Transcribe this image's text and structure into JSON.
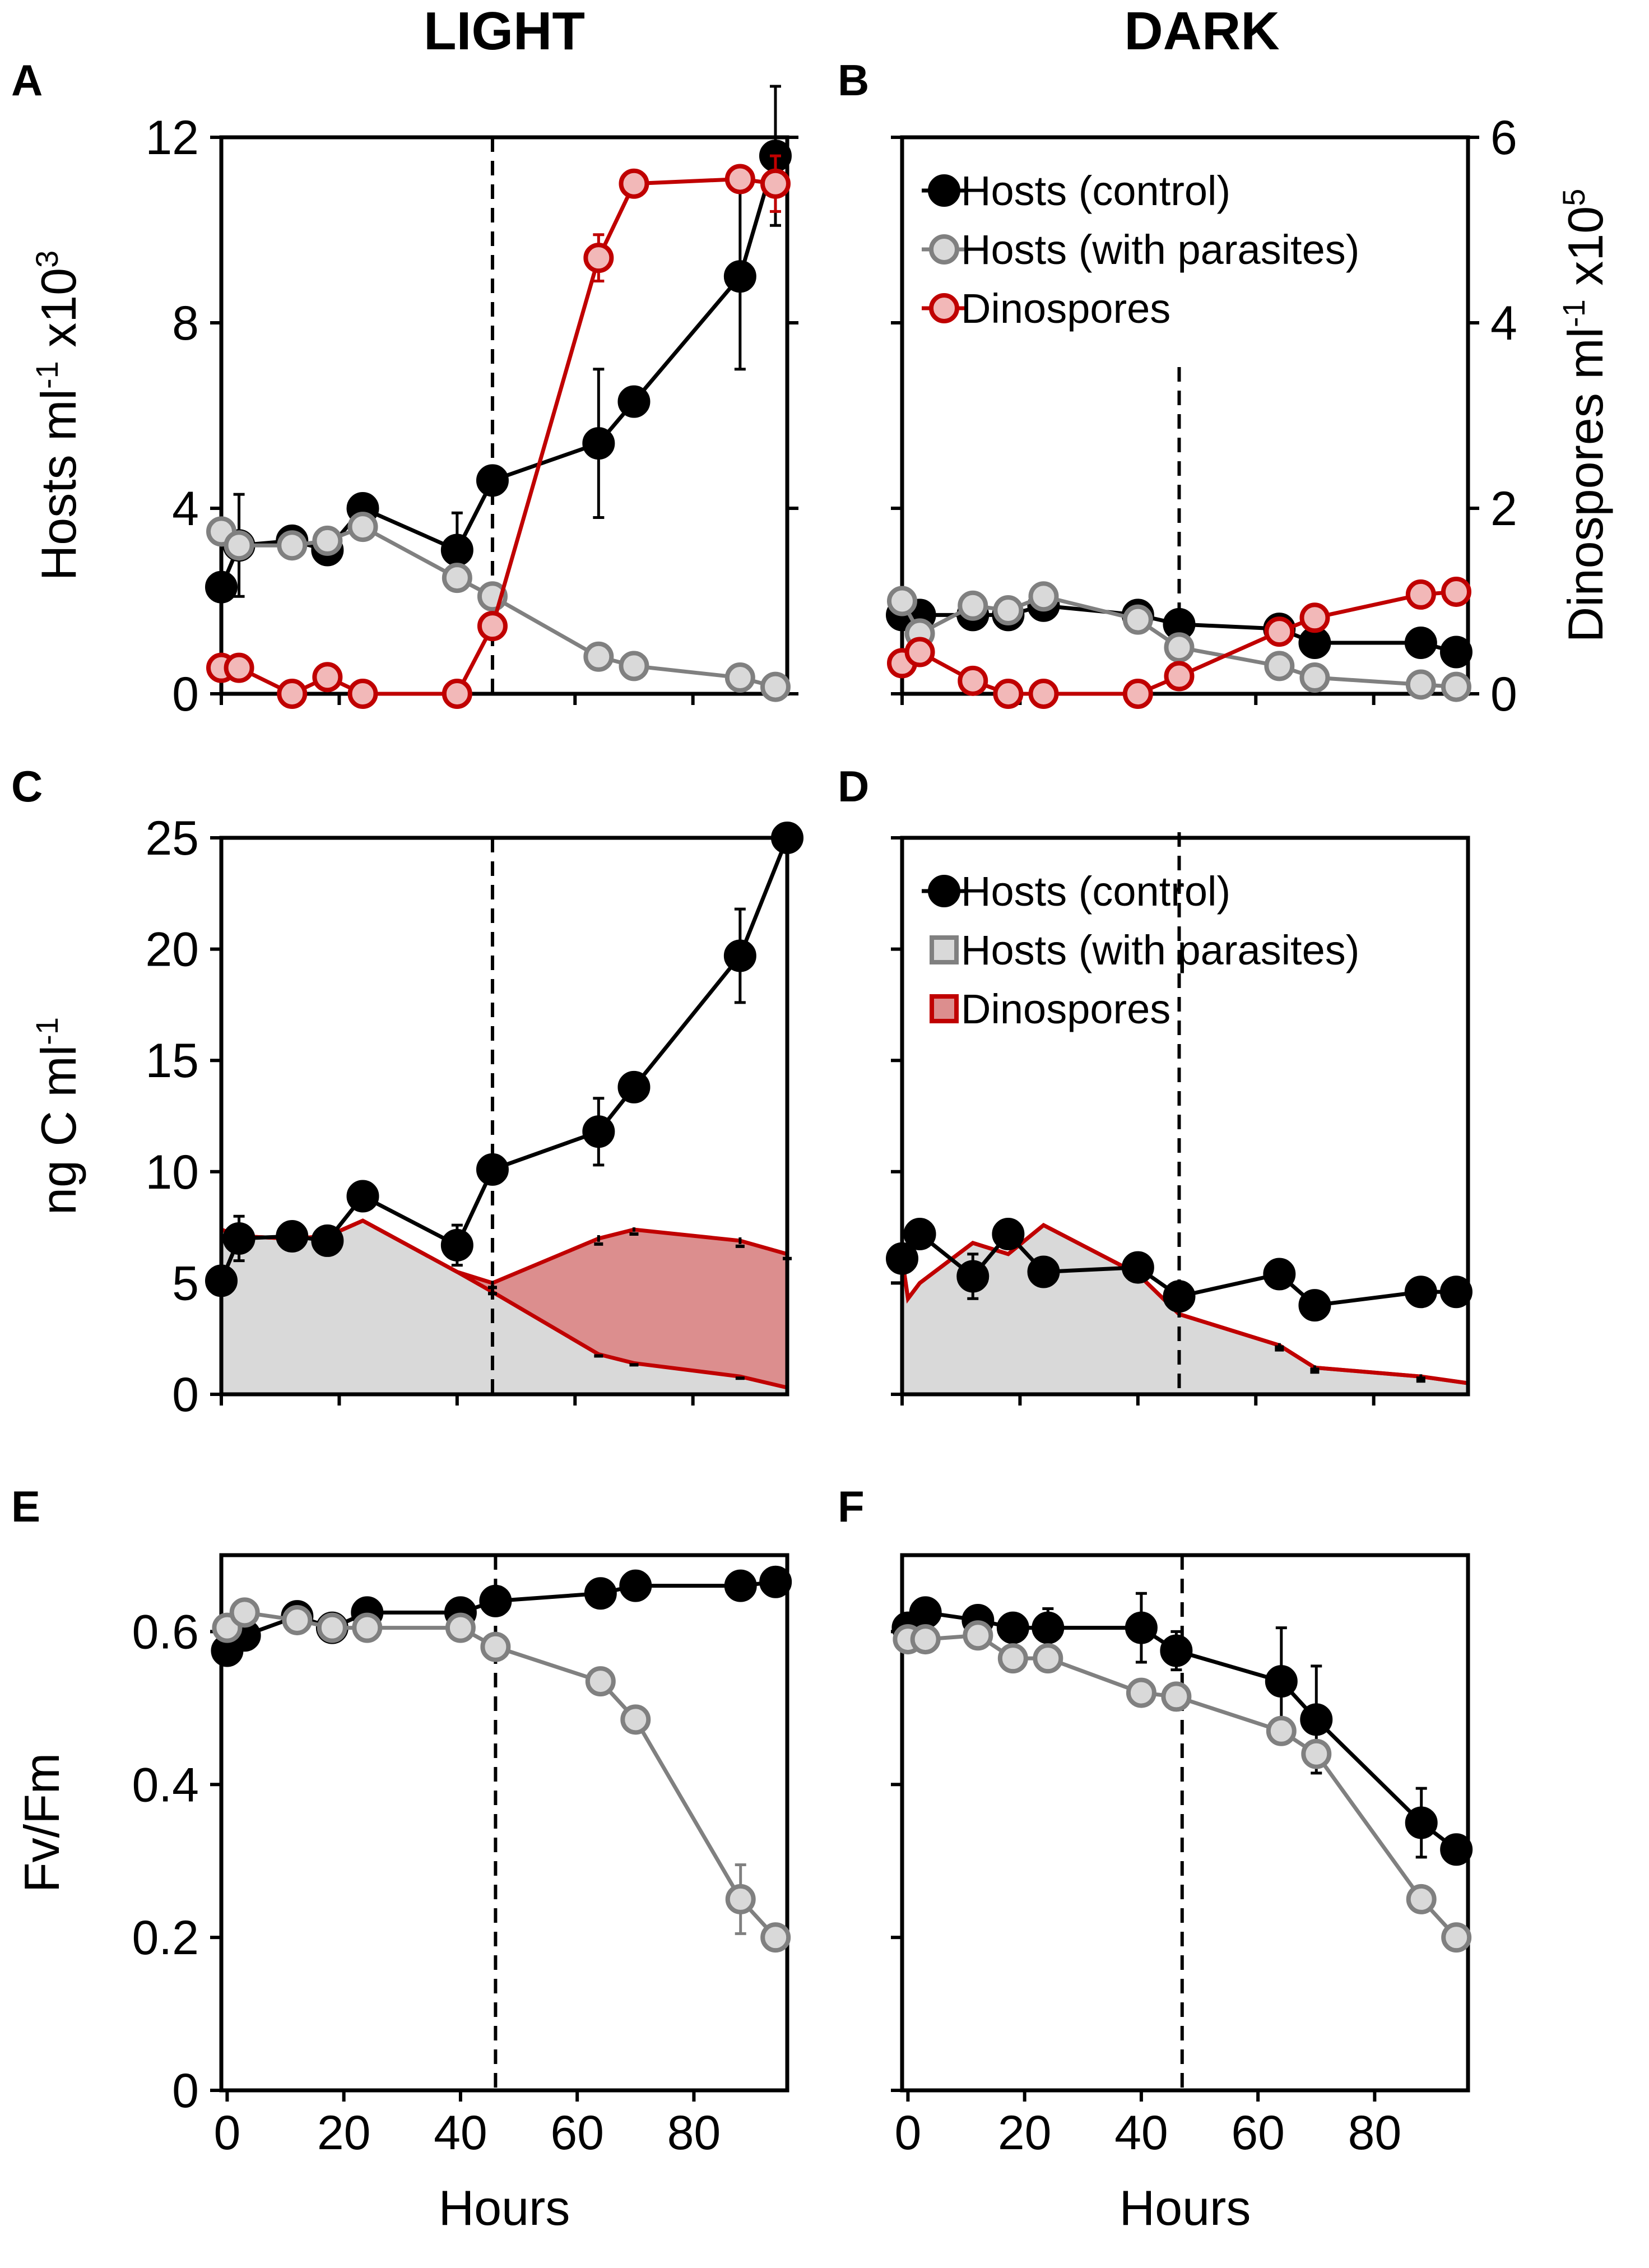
{
  "figure": {
    "column_titles": [
      "LIGHT",
      "DARK"
    ],
    "colors": {
      "control": "#000000",
      "parasites_marker_fill": "#d9d9d9",
      "parasites_line": "#808080",
      "dinospores_marker_fill": "#f2b8b8",
      "dinospores_line": "#c00000",
      "dinospores_area_fill": "#dc8e8e",
      "hosts_area_fill": "#d9d9d9"
    }
  },
  "chart_data": [
    {
      "id": "A",
      "panel_letter": "A",
      "condition": "LIGHT",
      "type": "line",
      "ylabel": "Hosts ml",
      "ylabel_sup1": "-1",
      "ylabel_mid": " x10",
      "ylabel_sup2": "3",
      "ylim": [
        0,
        12
      ],
      "yticks": [
        0,
        4,
        8,
        12
      ],
      "y2lim": [
        0,
        6
      ],
      "y2ticks": [
        0,
        2,
        4,
        6
      ],
      "xlim": [
        0,
        96
      ],
      "xticks": [
        0,
        20,
        40,
        60,
        80
      ],
      "show_xlabels": false,
      "infection_line_hours": 46,
      "series": [
        {
          "name": "Hosts (control)",
          "style": "control",
          "axis": "left",
          "x": [
            0,
            3,
            12,
            18,
            24,
            40,
            46,
            64,
            70,
            88,
            94
          ],
          "y": [
            2.3,
            3.2,
            3.3,
            3.1,
            4.0,
            3.1,
            4.6,
            5.4,
            6.3,
            9.0,
            11.6
          ],
          "err": [
            0.3,
            1.1,
            0.3,
            0.3,
            0.2,
            0.8,
            0.3,
            1.6,
            0.2,
            2.0,
            1.5
          ]
        },
        {
          "name": "Hosts (with parasites)",
          "style": "parasites",
          "axis": "left",
          "x": [
            0,
            3,
            12,
            18,
            24,
            40,
            46,
            64,
            70,
            88,
            94
          ],
          "y": [
            3.5,
            3.2,
            3.2,
            3.3,
            3.6,
            2.5,
            2.1,
            0.8,
            0.6,
            0.35,
            0.15
          ],
          "err": [
            0.2,
            0.2,
            0.2,
            0.2,
            0.2,
            0.2,
            0.1,
            0.05,
            0.05,
            0.05,
            0.05
          ]
        },
        {
          "name": "Dinospores",
          "style": "dinospores",
          "axis": "right",
          "x": [
            0,
            3,
            12,
            18,
            24,
            40,
            46,
            64,
            70,
            88,
            94
          ],
          "y": [
            0.28,
            0.28,
            0.0,
            0.18,
            0.0,
            0.0,
            0.73,
            4.7,
            5.5,
            5.55,
            5.5
          ],
          "err": [
            0.03,
            0.03,
            0.0,
            0.03,
            0.0,
            0.0,
            0.05,
            0.25,
            0.05,
            0.1,
            0.3
          ]
        }
      ]
    },
    {
      "id": "B",
      "panel_letter": "B",
      "condition": "DARK",
      "type": "line",
      "y2label": "Dinospores ml",
      "y2label_sup1": "-1",
      "y2label_mid": " x10",
      "y2label_sup2": "5",
      "ylim": [
        0,
        12
      ],
      "yticks": [
        0,
        4,
        8,
        12
      ],
      "y2lim": [
        0,
        6
      ],
      "y2ticks": [
        0,
        2,
        4,
        6
      ],
      "xlim": [
        0,
        96
      ],
      "xticks": [
        0,
        20,
        40,
        60,
        80
      ],
      "show_xlabels": false,
      "infection_line_hours": 47,
      "legend": {
        "position": "top",
        "items": [
          "Hosts (control)",
          "Hosts (with parasites)",
          "Dinospores"
        ],
        "kind": "marker"
      },
      "series": [
        {
          "name": "Hosts (control)",
          "style": "control",
          "axis": "left",
          "x": [
            0,
            3,
            12,
            18,
            24,
            40,
            47,
            64,
            70,
            88,
            94
          ],
          "y": [
            1.7,
            1.7,
            1.7,
            1.7,
            1.9,
            1.7,
            1.5,
            1.4,
            1.1,
            1.1,
            0.9
          ],
          "err": [
            0.1,
            0.1,
            0.1,
            0.1,
            0.1,
            0.1,
            0.1,
            0.1,
            0.1,
            0.1,
            0.1
          ]
        },
        {
          "name": "Hosts (with parasites)",
          "style": "parasites",
          "axis": "left",
          "x": [
            0,
            3,
            12,
            18,
            24,
            40,
            47,
            64,
            70,
            88,
            94
          ],
          "y": [
            2.0,
            1.3,
            1.9,
            1.8,
            2.1,
            1.6,
            1.0,
            0.6,
            0.35,
            0.2,
            0.15
          ],
          "err": [
            0.1,
            0.1,
            0.1,
            0.1,
            0.1,
            0.1,
            0.1,
            0.05,
            0.05,
            0.05,
            0.05
          ]
        },
        {
          "name": "Dinospores",
          "style": "dinospores",
          "axis": "right",
          "x": [
            0,
            3,
            12,
            18,
            24,
            40,
            47,
            64,
            70,
            88,
            94
          ],
          "y": [
            0.33,
            0.45,
            0.14,
            0.0,
            0.0,
            0.0,
            0.19,
            0.67,
            0.82,
            1.07,
            1.1
          ],
          "err": [
            0.03,
            0.03,
            0.03,
            0.0,
            0.0,
            0.0,
            0.03,
            0.05,
            0.05,
            0.05,
            0.05
          ]
        }
      ]
    },
    {
      "id": "C",
      "panel_letter": "C",
      "condition": "LIGHT",
      "type": "area",
      "ylabel": "ng C ml",
      "ylabel_sup1": "-1",
      "ylim": [
        0,
        25
      ],
      "yticks": [
        0,
        5,
        10,
        15,
        20,
        25
      ],
      "xlim": [
        0,
        96
      ],
      "xticks": [
        0,
        20,
        40,
        60,
        80
      ],
      "show_xlabels": false,
      "infection_line_hours": 46,
      "series": [
        {
          "name": "Hosts (control)",
          "style": "control",
          "x": [
            0,
            3,
            12,
            18,
            24,
            40,
            46,
            64,
            70,
            88,
            96
          ],
          "y": [
            5.1,
            7.0,
            7.1,
            6.9,
            8.9,
            6.7,
            10.1,
            11.8,
            13.8,
            19.7,
            25.0
          ],
          "err": [
            0.3,
            1.0,
            0.3,
            0.3,
            0.3,
            0.9,
            0.3,
            1.5,
            0.3,
            2.1,
            0.3
          ]
        },
        {
          "name": "Hosts (with parasites)",
          "style": "parasites-area",
          "x": [
            0,
            3,
            12,
            18,
            24,
            40,
            46,
            64,
            70,
            88,
            96
          ],
          "y": [
            7.4,
            7.1,
            7.0,
            7.1,
            7.8,
            5.5,
            4.6,
            1.8,
            1.4,
            0.8,
            0.3
          ]
        },
        {
          "name": "Dinospores",
          "style": "dinospores-area",
          "x": [
            0,
            3,
            12,
            18,
            24,
            40,
            46,
            64,
            70,
            88,
            96
          ],
          "y": [
            7.4,
            7.1,
            7.0,
            7.1,
            7.8,
            5.5,
            5.0,
            7.0,
            7.4,
            6.9,
            6.3
          ],
          "err": [
            0,
            0,
            0,
            0,
            0,
            0,
            0.1,
            0.15,
            0.1,
            0.15,
            0.1
          ]
        }
      ]
    },
    {
      "id": "D",
      "panel_letter": "D",
      "condition": "DARK",
      "type": "area",
      "ylim": [
        0,
        25
      ],
      "yticks": [
        0,
        5,
        10,
        15,
        20,
        25
      ],
      "xlim": [
        0,
        96
      ],
      "xticks": [
        0,
        20,
        40,
        60,
        80
      ],
      "show_xlabels": false,
      "infection_line_hours": 47,
      "legend": {
        "position": "top",
        "items": [
          "Hosts (control)",
          "Hosts (with parasites)",
          "Dinospores"
        ],
        "kind": "area"
      },
      "series": [
        {
          "name": "Hosts (control)",
          "style": "control",
          "x": [
            0,
            3,
            12,
            18,
            24,
            40,
            47,
            64,
            70,
            88,
            94
          ],
          "y": [
            6.1,
            7.2,
            5.3,
            7.2,
            5.5,
            5.7,
            4.4,
            5.4,
            4.0,
            4.6,
            4.6
          ],
          "err": [
            0.2,
            0.3,
            1.0,
            0.3,
            0.3,
            0.3,
            0.2,
            0.2,
            0.2,
            0.2,
            0.2
          ]
        },
        {
          "name": "Hosts (with parasites)",
          "style": "parasites-area",
          "x": [
            0,
            1,
            3,
            12,
            18,
            24,
            40,
            47,
            64,
            70,
            88,
            96
          ],
          "y": [
            6.1,
            4.3,
            5.0,
            6.8,
            6.3,
            7.6,
            5.4,
            3.6,
            2.2,
            1.2,
            0.8,
            0.5
          ]
        },
        {
          "name": "Dinospores",
          "style": "dinospores-area",
          "x": [
            0,
            1,
            3,
            12,
            18,
            24,
            40,
            47,
            64,
            70,
            88,
            96
          ],
          "y": [
            6.1,
            4.3,
            5.0,
            6.8,
            6.3,
            7.6,
            5.4,
            3.6,
            2.2,
            1.2,
            0.8,
            0.5
          ],
          "err": [
            0,
            0,
            0,
            0,
            0,
            0,
            0,
            0,
            0.1,
            0.1,
            0.1,
            0
          ]
        }
      ]
    },
    {
      "id": "E",
      "panel_letter": "E",
      "condition": "LIGHT",
      "type": "line",
      "ylabel": "Fv/Fm",
      "xlabel": "Hours",
      "ylim": [
        0,
        0.7
      ],
      "yticks": [
        0,
        0.2,
        0.4,
        0.6
      ],
      "ytick_labels": [
        "0",
        "0.2",
        "0.4",
        "0.6"
      ],
      "xlim": [
        -1,
        96
      ],
      "xticks": [
        0,
        20,
        40,
        60,
        80
      ],
      "show_xlabels": true,
      "infection_line_hours": 46,
      "series": [
        {
          "name": "Hosts (control)",
          "style": "control",
          "x": [
            0,
            3,
            12,
            18,
            24,
            40,
            46,
            64,
            70,
            88,
            94
          ],
          "y": [
            0.575,
            0.595,
            0.62,
            0.605,
            0.625,
            0.625,
            0.64,
            0.65,
            0.66,
            0.66,
            0.665
          ],
          "err": [
            0.01,
            0.01,
            0.01,
            0.01,
            0.012,
            0.01,
            0.01,
            0.01,
            0.01,
            0.01,
            0.01
          ]
        },
        {
          "name": "Hosts (with parasites)",
          "style": "parasites",
          "x": [
            0,
            3,
            12,
            18,
            24,
            40,
            46,
            64,
            70,
            88,
            94
          ],
          "y": [
            0.605,
            0.625,
            0.615,
            0.605,
            0.605,
            0.605,
            0.58,
            0.535,
            0.485,
            0.25,
            0.2
          ],
          "err": [
            0.01,
            0.01,
            0.01,
            0.01,
            0.015,
            0.015,
            0.012,
            0.015,
            0.015,
            0.045,
            0.015
          ]
        }
      ]
    },
    {
      "id": "F",
      "panel_letter": "F",
      "condition": "DARK",
      "type": "line",
      "xlabel": "Hours",
      "ylim": [
        0,
        0.7
      ],
      "yticks": [
        0,
        0.2,
        0.4,
        0.6
      ],
      "xlim": [
        -1,
        96
      ],
      "xticks": [
        0,
        20,
        40,
        60,
        80
      ],
      "show_xlabels": true,
      "infection_line_hours": 47,
      "series": [
        {
          "name": "Hosts (control)",
          "style": "control",
          "x": [
            0,
            3,
            12,
            18,
            24,
            40,
            46,
            64,
            70,
            88,
            94
          ],
          "y": [
            0.605,
            0.625,
            0.615,
            0.605,
            0.605,
            0.605,
            0.575,
            0.535,
            0.485,
            0.35,
            0.315
          ],
          "err": [
            0.01,
            0.01,
            0.01,
            0.01,
            0.025,
            0.045,
            0.025,
            0.07,
            0.07,
            0.045,
            0.015
          ]
        },
        {
          "name": "Hosts (with parasites)",
          "style": "parasites",
          "x": [
            0,
            3,
            12,
            18,
            24,
            40,
            46,
            64,
            70,
            88,
            94
          ],
          "y": [
            0.59,
            0.59,
            0.595,
            0.565,
            0.565,
            0.52,
            0.515,
            0.47,
            0.44,
            0.25,
            0.2
          ],
          "err": [
            0.01,
            0.01,
            0.01,
            0.01,
            0.015,
            0.01,
            0.01,
            0.01,
            0.01,
            0.01,
            0.01
          ]
        }
      ]
    }
  ]
}
